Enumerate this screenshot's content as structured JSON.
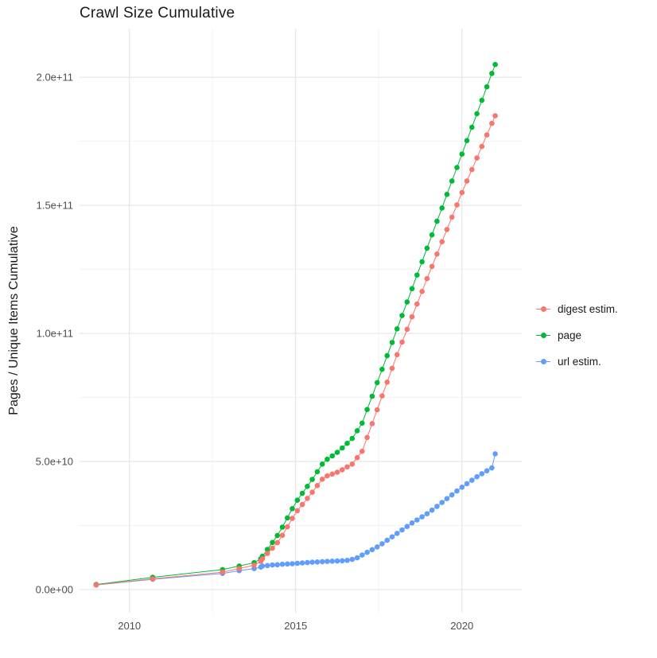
{
  "title": "Crawl Size Cumulative",
  "colors": {
    "digest": "#F8766D",
    "page": "#00BA38",
    "url": "#619CFF",
    "grid_major": "#E4E4E4",
    "grid_minor": "#F2F2F2",
    "axis_text": "#4D4D4D",
    "title_text": "#1A1A1A"
  },
  "chart_data": {
    "type": "line",
    "title": "Crawl Size Cumulative",
    "xlabel": "",
    "ylabel": "Pages / Unique Items Cumulative",
    "grid": true,
    "legend_position": "right",
    "x_range": [
      2008.5,
      2021.8
    ],
    "y_range": [
      -9000000000.0,
      219000000000.0
    ],
    "x_ticks": [
      {
        "value": 2010,
        "label": "2010"
      },
      {
        "value": 2015,
        "label": "2015"
      },
      {
        "value": 2020,
        "label": "2020"
      }
    ],
    "y_ticks": [
      {
        "value": 0,
        "label": "0.0e+00"
      },
      {
        "value": 50000000000.0,
        "label": "5.0e+10"
      },
      {
        "value": 100000000000.0,
        "label": "1.0e+11"
      },
      {
        "value": 150000000000.0,
        "label": "1.5e+11"
      },
      {
        "value": 200000000000.0,
        "label": "2.0e+11"
      }
    ],
    "minor_x_ticks": [
      2012.5,
      2017.5
    ],
    "minor_y_ticks": [
      25000000000.0,
      75000000000.0,
      125000000000.0,
      175000000000.0
    ],
    "y_unit": 1000000000.0,
    "x": [
      2009.0,
      2010.7,
      2012.8,
      2013.3,
      2013.75,
      2013.95,
      2014.0,
      2014.15,
      2014.3,
      2014.45,
      2014.6,
      2014.75,
      2014.9,
      2015.05,
      2015.2,
      2015.35,
      2015.5,
      2015.65,
      2015.8,
      2015.95,
      2016.1,
      2016.25,
      2016.4,
      2016.55,
      2016.7,
      2016.85,
      2017.0,
      2017.15,
      2017.3,
      2017.45,
      2017.6,
      2017.75,
      2017.9,
      2018.05,
      2018.2,
      2018.35,
      2018.5,
      2018.65,
      2018.8,
      2018.95,
      2019.1,
      2019.25,
      2019.4,
      2019.55,
      2019.7,
      2019.85,
      2020.0,
      2020.15,
      2020.3,
      2020.45,
      2020.6,
      2020.75,
      2020.9,
      2021.0
    ],
    "series": [
      {
        "name": "digest estim.",
        "color": "#F8766D",
        "values": [
          1.8,
          4.2,
          6.8,
          8.2,
          9.5,
          11,
          12,
          14.1,
          16.2,
          18.3,
          21.2,
          24.5,
          27.8,
          30.8,
          33.2,
          35.6,
          38,
          40.6,
          43.1,
          44.4,
          45.1,
          45.8,
          46.8,
          47.9,
          49,
          51.5,
          54,
          59.4,
          64.8,
          70.2,
          75.6,
          81,
          86.4,
          91.7,
          96.6,
          101.6,
          106.5,
          111.5,
          116.4,
          121.4,
          126.2,
          131,
          135.8,
          140.6,
          145.4,
          150.2,
          155,
          159.5,
          164,
          168.5,
          173,
          177.5,
          182,
          185
        ]
      },
      {
        "name": "page",
        "color": "#00BA38",
        "values": [
          2.0,
          4.8,
          7.8,
          9.2,
          10.5,
          12,
          13,
          15.7,
          18.4,
          21.1,
          24.4,
          28,
          31.6,
          34.9,
          37.6,
          40.3,
          43,
          46,
          49,
          50.9,
          52.2,
          53.6,
          55.3,
          57.1,
          59,
          62,
          65,
          70.3,
          75.5,
          80.8,
          86,
          91.3,
          96.5,
          101.8,
          107,
          112.3,
          117.5,
          122.8,
          128,
          133.3,
          138.5,
          143.8,
          149,
          154.3,
          159.5,
          164.8,
          170,
          175.3,
          180.5,
          185.8,
          191,
          196.3,
          201.5,
          205
        ]
      },
      {
        "name": "url estim.",
        "color": "#619CFF",
        "values": [
          1.8,
          4.0,
          6.3,
          7.4,
          8.2,
          8.8,
          9.2,
          9.4,
          9.6,
          9.7,
          9.9,
          10,
          10.1,
          10.25,
          10.4,
          10.55,
          10.7,
          10.8,
          10.9,
          11,
          11.1,
          11.15,
          11.25,
          11.4,
          11.8,
          12.4,
          13.5,
          14.55,
          15.6,
          16.65,
          17.9,
          19.25,
          20.6,
          21.95,
          23.3,
          24.65,
          26,
          27.2,
          28.4,
          29.6,
          31,
          32.5,
          34,
          35.5,
          37,
          38.5,
          40,
          41.35,
          42.7,
          44.05,
          45.25,
          46.4,
          47.5,
          53
        ]
      }
    ]
  }
}
